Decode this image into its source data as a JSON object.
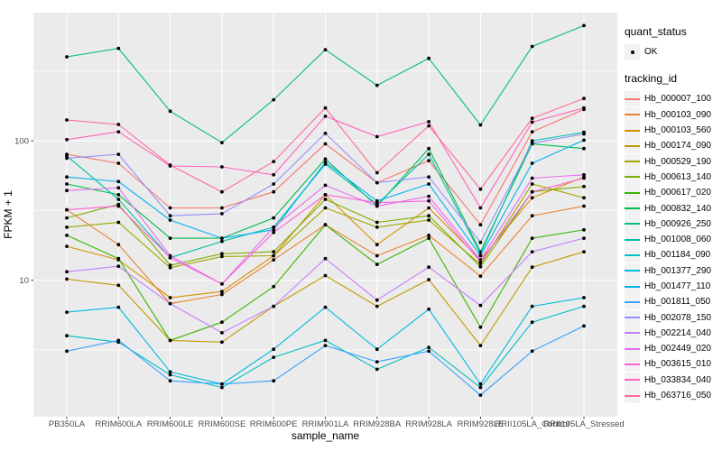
{
  "page": {
    "background": "#FFFFFF"
  },
  "chart_data": {
    "type": "line",
    "title": "",
    "xlabel": "sample_name",
    "ylabel": "FPKM + 1",
    "y_scale": "log10",
    "ylim": [
      1.05,
      830
    ],
    "y_ticks": [
      100,
      10
    ],
    "y_tick_labels": [
      "100",
      "10"
    ],
    "y_minor_gridlines": [
      3.162,
      31.62,
      316.2
    ],
    "grid": true,
    "panel_bg": "#EBEBEB",
    "grid_color": "#FFFFFF",
    "tick_color": "#333333",
    "tick_label_color": "#4D4D4D",
    "point_color": "#000000",
    "legend_position": "right",
    "categories": [
      "PB350LA",
      "RRIM600LA",
      "RRIM600LE",
      "RRIM600SE",
      "RRIM600PE",
      "RRIM901LA",
      "RRIM928BA",
      "RRIM928LA",
      "RRIM928LE",
      "RRII105LA_Control",
      "RRII105LA_Stressed"
    ],
    "series": [
      {
        "name": "Hb_000007_100",
        "color": "#F8766D",
        "values": [
          80,
          69,
          33,
          33,
          43,
          95,
          50,
          72,
          25,
          116,
          168
        ]
      },
      {
        "name": "Hb_000103_090",
        "color": "#EA8331",
        "values": [
          32,
          18,
          6.8,
          7.9,
          14,
          25,
          15,
          21,
          10.7,
          29,
          34
        ]
      },
      {
        "name": "Hb_000103_560",
        "color": "#D89000",
        "values": [
          17.5,
          14,
          7.5,
          8.3,
          15,
          41,
          18,
          33,
          14,
          39,
          55
        ]
      },
      {
        "name": "Hb_000174_090",
        "color": "#C09B00",
        "values": [
          10.2,
          9.2,
          3.7,
          3.6,
          6.5,
          10.8,
          6.5,
          10.1,
          3.4,
          12.4,
          16
        ]
      },
      {
        "name": "Hb_000529_190",
        "color": "#A3A500",
        "values": [
          24,
          26,
          12.3,
          14.8,
          15,
          33,
          24,
          27,
          13,
          49,
          39
        ]
      },
      {
        "name": "Hb_000613_140",
        "color": "#7CAE00",
        "values": [
          28,
          35,
          12.8,
          15.5,
          16,
          38,
          26,
          29,
          12.5,
          43,
          47
        ]
      },
      {
        "name": "Hb_000617_020",
        "color": "#39B600",
        "values": [
          21,
          14.3,
          3.7,
          5,
          9,
          25,
          13,
          20,
          4.6,
          20,
          23
        ]
      },
      {
        "name": "Hb_000832_140",
        "color": "#00BB4E",
        "values": [
          49,
          41,
          20,
          20,
          28,
          74,
          34,
          88,
          16,
          95,
          88
        ]
      },
      {
        "name": "Hb_000926_250",
        "color": "#00BF7D",
        "values": [
          400,
          460,
          163,
          97,
          197,
          450,
          250,
          390,
          130,
          475,
          670
        ]
      },
      {
        "name": "Hb_001008_060",
        "color": "#00C1A3",
        "values": [
          78,
          38,
          14.5,
          19,
          24,
          68,
          35,
          80,
          15.5,
          100,
          115
        ]
      },
      {
        "name": "Hb_001184_090",
        "color": "#00BFC4",
        "values": [
          4,
          3.6,
          2.1,
          1.7,
          2.8,
          3.7,
          2.3,
          3.3,
          1.7,
          5,
          6.5
        ]
      },
      {
        "name": "Hb_001377_290",
        "color": "#00BAE0",
        "values": [
          5.9,
          6.4,
          2.2,
          1.8,
          3.2,
          6.4,
          3.2,
          6.2,
          1.8,
          6.5,
          7.5
        ]
      },
      {
        "name": "Hb_001477_110",
        "color": "#00B0F6",
        "values": [
          55,
          51,
          27,
          20,
          23,
          70,
          37,
          49,
          15,
          69,
          101
        ]
      },
      {
        "name": "Hb_001811_050",
        "color": "#35A2FF",
        "values": [
          3.1,
          3.7,
          1.9,
          1.8,
          1.9,
          3.4,
          2.6,
          3.1,
          1.5,
          3.1,
          4.7
        ]
      },
      {
        "name": "Hb_002078_150",
        "color": "#9590FF",
        "values": [
          75,
          80,
          29,
          30,
          49,
          113,
          50,
          55,
          18.7,
          96,
          112
        ]
      },
      {
        "name": "Hb_002214_040",
        "color": "#C77CFF",
        "values": [
          11.5,
          12.6,
          6.8,
          4.2,
          6.5,
          14.3,
          7.2,
          12.4,
          6.6,
          16,
          20
        ]
      },
      {
        "name": "Hb_002449_020",
        "color": "#E76BF3",
        "values": [
          44,
          46,
          15,
          9.4,
          24,
          48,
          34,
          40,
          14,
          54,
          57
        ]
      },
      {
        "name": "Hb_003615_010",
        "color": "#FA62DB",
        "values": [
          32,
          34,
          14.5,
          9.4,
          22,
          41,
          36,
          37,
          13.5,
          43,
          54
        ]
      },
      {
        "name": "Hb_033834_040",
        "color": "#FF62BC",
        "values": [
          102,
          116,
          66,
          65,
          57,
          150,
          107,
          137,
          33,
          136,
          172
        ]
      },
      {
        "name": "Hb_063716_050",
        "color": "#FF6A98",
        "values": [
          141,
          131,
          67,
          43,
          71,
          172,
          59,
          128,
          45,
          145,
          201
        ]
      }
    ],
    "legend": {
      "quant_title": "quant_status",
      "quant_items": [
        {
          "label": "OK",
          "shape": "black-point"
        }
      ],
      "series_title": "tracking_id",
      "key_bg": "#F2F2F2"
    }
  }
}
